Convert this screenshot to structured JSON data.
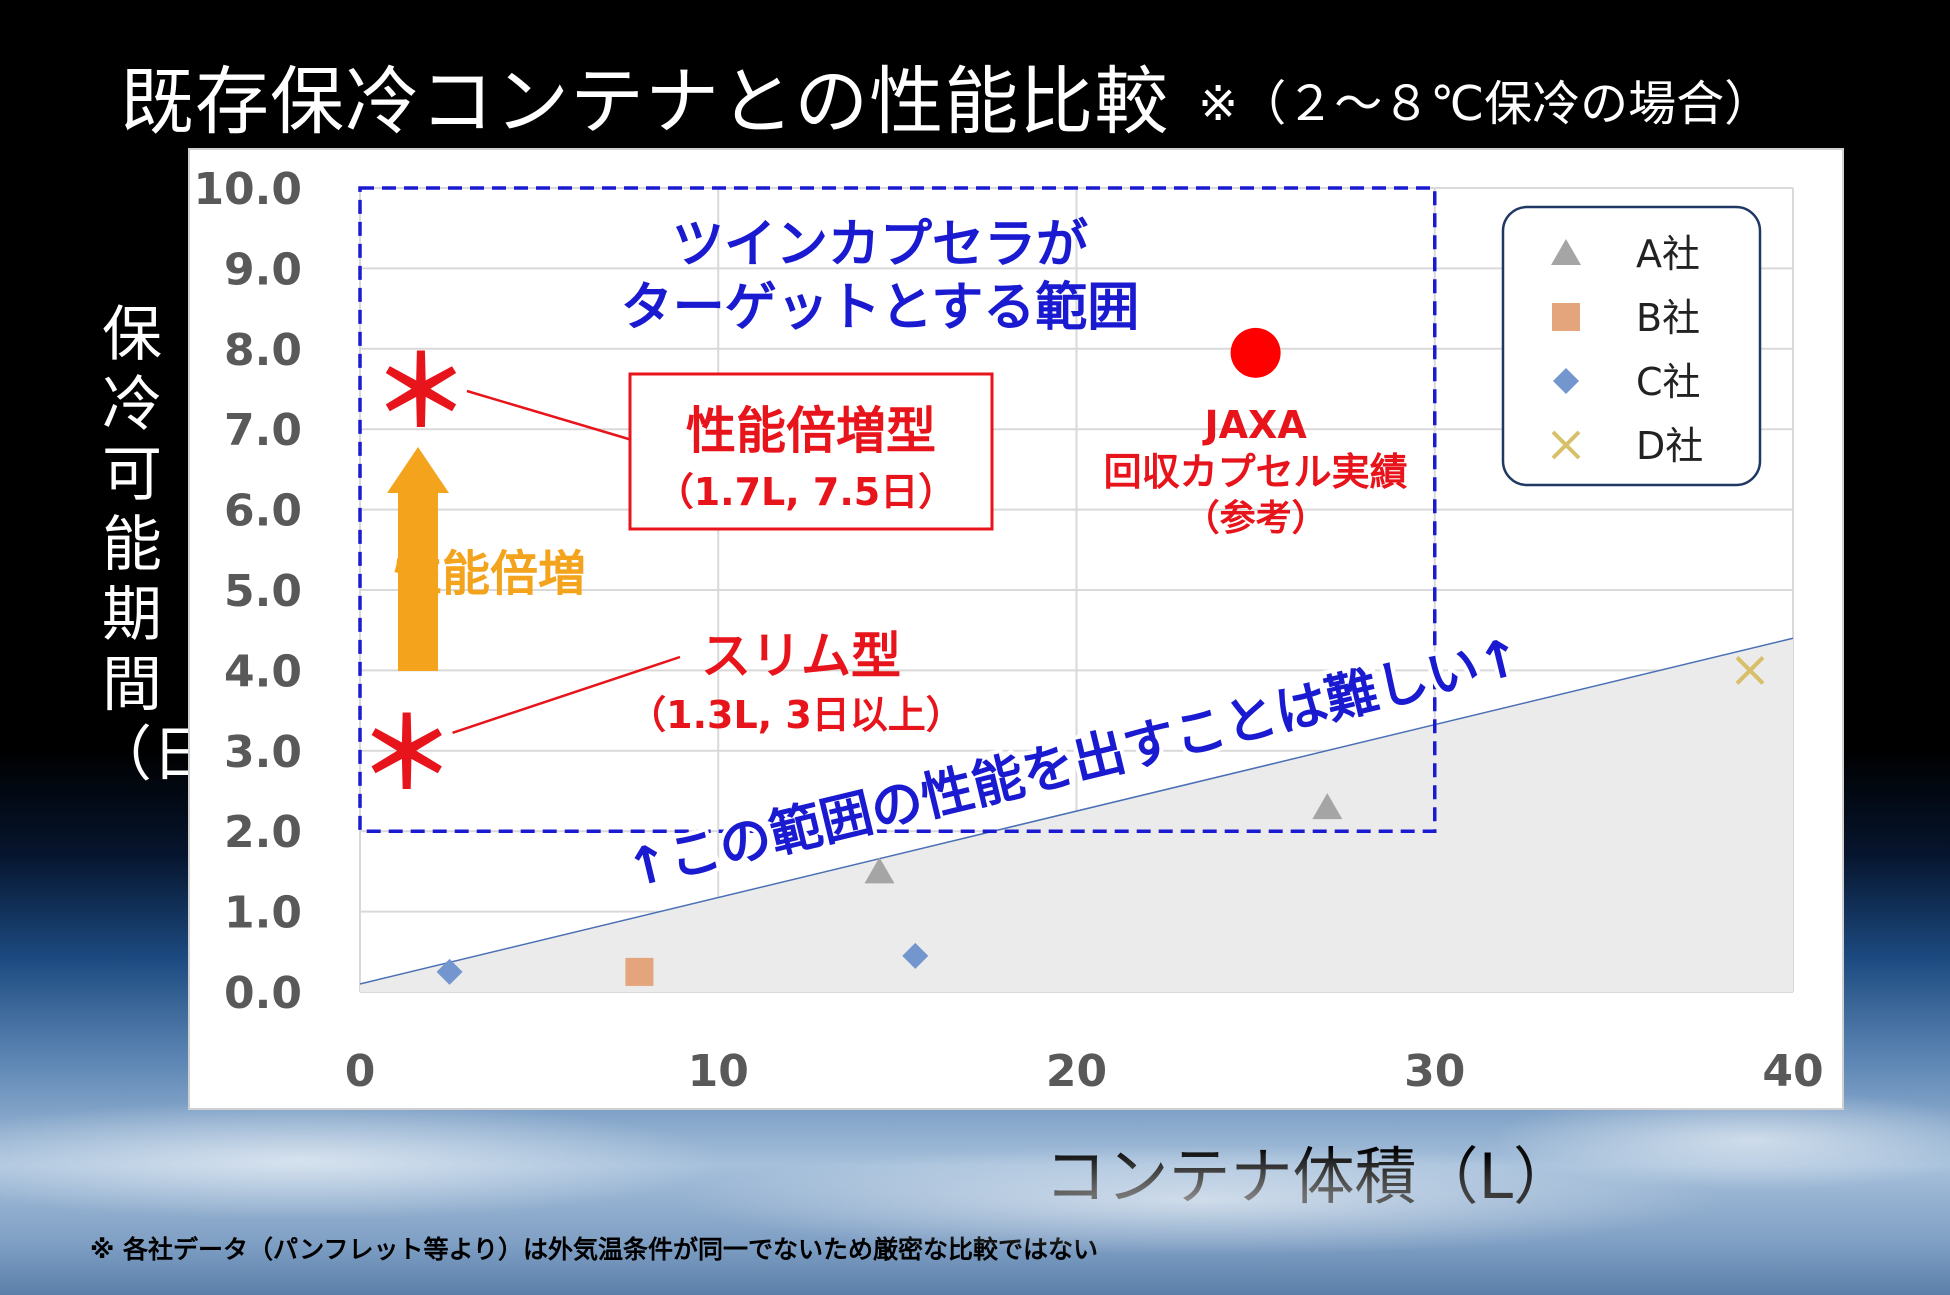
{
  "title": "既存保冷コンテナとの性能比較",
  "subtitle": "※（２～８℃保冷の場合）",
  "footnote": "※ 各社データ（パンフレット等より）は外気温条件が同一でないため厳密な比較ではない",
  "colors": {
    "series_a": "#a5a5a5",
    "series_b": "#e4a47c",
    "series_c": "#7396cf",
    "series_d": "#d8bf6a",
    "target_box": "#1a1ad0",
    "red": "#e8141b",
    "orange": "#f4a41c",
    "jaxa": "#ff0000"
  },
  "annotations": {
    "target_range": [
      "ツインカプセラが",
      "ターゲットとする範囲"
    ],
    "double_type_title": "性能倍増型",
    "double_type_detail": "（1.7L, 7.5日）",
    "slim_type_title": "スリム型",
    "slim_type_detail": "（1.3L, 3日以上）",
    "double_arrow_label": "性能倍増",
    "jaxa_label": [
      "JAXA",
      "回収カプセル実績",
      "（参考）"
    ],
    "difficulty_note": "↑この範囲の性能を出すことは難しい↑",
    "star_glyph": "＊"
  },
  "chart_data": {
    "type": "scatter",
    "xlabel": "コンテナ体積（L）",
    "ylabel": "保冷可能期間（日）",
    "xlim": [
      0,
      40
    ],
    "ylim": [
      0,
      10
    ],
    "x_ticks": [
      "0",
      "10",
      "20",
      "30",
      "40"
    ],
    "y_ticks": [
      "0.0",
      "1.0",
      "2.0",
      "3.0",
      "4.0",
      "5.0",
      "6.0",
      "7.0",
      "8.0",
      "9.0",
      "10.0"
    ],
    "grid": true,
    "legend_position": "top-right",
    "series": [
      {
        "name": "A社",
        "marker": "triangle",
        "points": [
          [
            14.5,
            1.5
          ],
          [
            27.0,
            2.3
          ]
        ]
      },
      {
        "name": "B社",
        "marker": "square",
        "points": [
          [
            7.8,
            0.25
          ]
        ]
      },
      {
        "name": "C社",
        "marker": "diamond",
        "points": [
          [
            2.5,
            0.25
          ],
          [
            15.5,
            0.45
          ]
        ]
      },
      {
        "name": "D社",
        "marker": "x",
        "points": [
          [
            38.8,
            4.0
          ]
        ]
      }
    ],
    "jaxa_point": [
      25,
      7.95
    ],
    "target_points": [
      [
        1.7,
        7.5
      ],
      [
        1.3,
        3.0
      ]
    ],
    "target_range": {
      "x": [
        0,
        30
      ],
      "y": [
        2.0,
        10.0
      ]
    },
    "difficulty_boundary": [
      [
        0,
        0.1
      ],
      [
        40,
        4.4
      ]
    ]
  }
}
